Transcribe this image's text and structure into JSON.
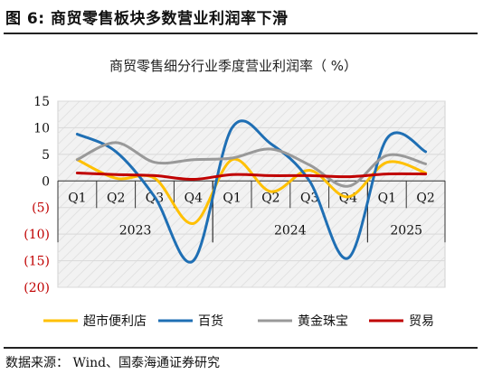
{
  "figure": {
    "title": "图 6:  商贸零售板块多数营业利润率下滑",
    "source": "数据来源：  Wind、国泰海通证券研究"
  },
  "chart_data": {
    "type": "line",
    "title": "商贸零售细分行业季度营业利润率（ %）",
    "categories": [
      "Q1",
      "Q2",
      "Q3",
      "Q4",
      "Q1",
      "Q2",
      "Q3",
      "Q4",
      "Q1",
      "Q2"
    ],
    "year_groups": [
      {
        "label": "2023",
        "span": 4
      },
      {
        "label": "2024",
        "span": 4
      },
      {
        "label": "2025",
        "span": 2
      }
    ],
    "y_ticks": [
      "15",
      "10",
      "5",
      "0",
      "(5)",
      "(10)",
      "(15)",
      "(20)"
    ],
    "ylim": [
      -20,
      15
    ],
    "grid": true,
    "legend_position": "bottom",
    "series": [
      {
        "name": "超市便利店",
        "color": "#FFC000",
        "values": [
          4,
          0.5,
          0.5,
          -8,
          4,
          -2,
          2,
          -3,
          3.5,
          1.5
        ]
      },
      {
        "name": "百货",
        "color": "#1F6FB4",
        "values": [
          8.8,
          5.5,
          -3,
          -15,
          10,
          7,
          0,
          -14.5,
          8,
          5.5
        ]
      },
      {
        "name": "黄金珠宝",
        "color": "#999999",
        "values": [
          4,
          7.2,
          3.5,
          4,
          4.3,
          6,
          3,
          -1,
          4.8,
          3.2
        ]
      },
      {
        "name": "贸易",
        "color": "#C00000",
        "values": [
          1.5,
          1.2,
          1,
          0.3,
          1.2,
          1,
          1,
          0.8,
          1.3,
          1.3
        ]
      }
    ]
  }
}
